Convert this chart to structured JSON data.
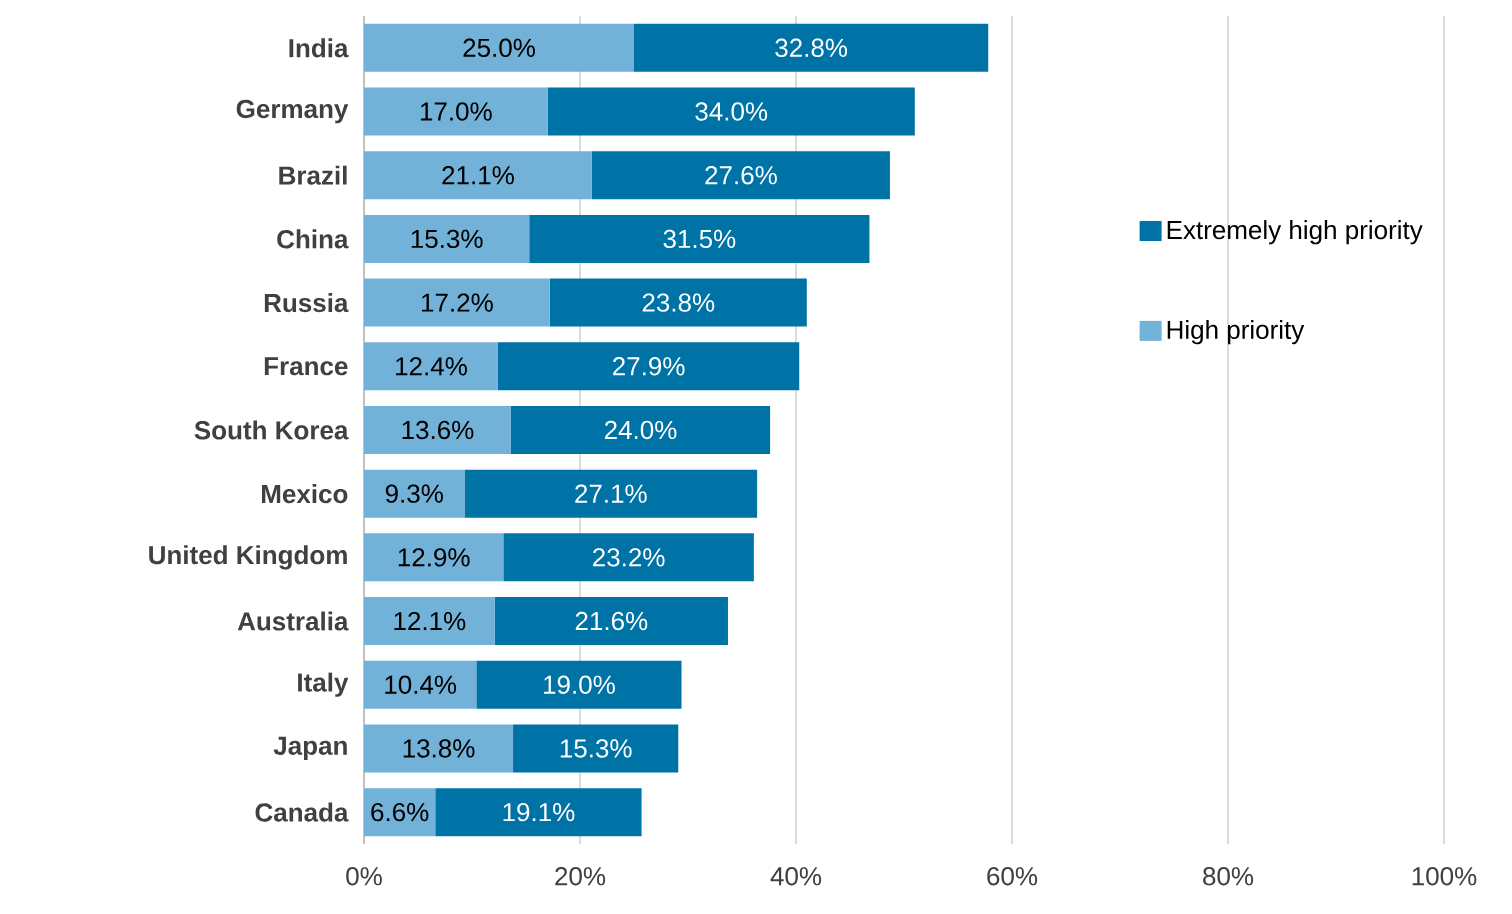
{
  "chart_data": {
    "type": "bar",
    "orientation": "horizontal",
    "stacked": true,
    "categories": [
      "India",
      "Germany",
      "Brazil",
      "China",
      "Russia",
      "France",
      "South Korea",
      "Mexico",
      "United Kingdom",
      "Australia",
      "Italy",
      "Japan",
      "Canada"
    ],
    "series": [
      {
        "name": "High priority",
        "color": "#72b1d8",
        "values": [
          25.0,
          17.0,
          21.1,
          15.3,
          17.2,
          12.4,
          13.6,
          9.3,
          12.9,
          12.1,
          10.4,
          13.8,
          6.6
        ],
        "value_labels": [
          "25.0%",
          "17.0%",
          "21.1%",
          "15.3%",
          "17.2%",
          "12.4%",
          "13.6%",
          "9.3%",
          "12.9%",
          "12.1%",
          "10.4%",
          "13.8%",
          "6.6%"
        ]
      },
      {
        "name": "Extremely high priority",
        "color": "#0073a6",
        "values": [
          32.8,
          34.0,
          27.6,
          31.5,
          23.8,
          27.9,
          24.0,
          27.1,
          23.2,
          21.6,
          19.0,
          15.3,
          19.1
        ],
        "value_labels": [
          "32.8%",
          "34.0%",
          "27.6%",
          "31.5%",
          "23.8%",
          "27.9%",
          "24.0%",
          "27.1%",
          "23.2%",
          "21.6%",
          "19.0%",
          "15.3%",
          "19.1%"
        ]
      }
    ],
    "xlim": [
      0,
      100
    ],
    "xticks": [
      {
        "value": 0,
        "label": "0%"
      },
      {
        "value": 20,
        "label": "20%"
      },
      {
        "value": 40,
        "label": "40%"
      },
      {
        "value": 60,
        "label": "60%"
      },
      {
        "value": 80,
        "label": "80%"
      },
      {
        "value": 100,
        "label": "100%"
      }
    ],
    "grid": "x",
    "legend": "right"
  }
}
